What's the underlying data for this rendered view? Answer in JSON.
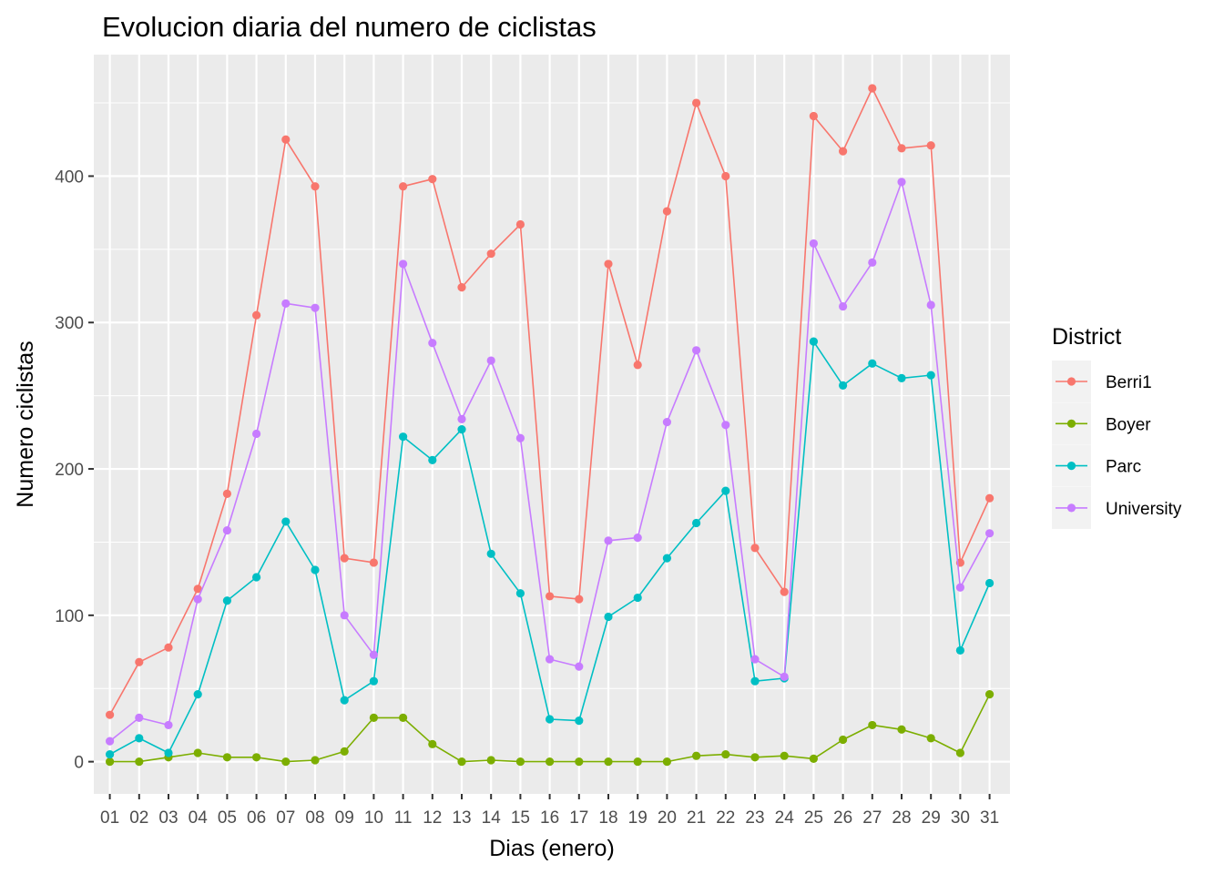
{
  "chart_data": {
    "type": "line",
    "title": "Evolucion diaria del numero de ciclistas",
    "xlabel": "Dias (enero)",
    "ylabel": "Numero ciclistas",
    "categories": [
      "01",
      "02",
      "03",
      "04",
      "05",
      "06",
      "07",
      "08",
      "09",
      "10",
      "11",
      "12",
      "13",
      "14",
      "15",
      "16",
      "17",
      "18",
      "19",
      "20",
      "21",
      "22",
      "23",
      "24",
      "25",
      "26",
      "27",
      "28",
      "29",
      "30",
      "31"
    ],
    "ylim": [
      -22,
      483
    ],
    "yticks": [
      0,
      100,
      200,
      300,
      400
    ],
    "ytick_labels": [
      "0",
      "100",
      "200",
      "300",
      "400"
    ],
    "grid": true,
    "legend": {
      "title": "District",
      "position": "right"
    },
    "series": [
      {
        "name": "Berri1",
        "color": "#F8766D",
        "values": [
          32,
          68,
          78,
          118,
          183,
          305,
          425,
          393,
          139,
          136,
          393,
          398,
          324,
          347,
          367,
          113,
          111,
          340,
          271,
          376,
          450,
          400,
          146,
          116,
          441,
          417,
          460,
          419,
          421,
          136,
          180
        ]
      },
      {
        "name": "Boyer",
        "color": "#7CAE00",
        "values": [
          0,
          0,
          3,
          6,
          3,
          3,
          0,
          1,
          7,
          30,
          30,
          12,
          0,
          1,
          0,
          0,
          0,
          0,
          0,
          0,
          4,
          5,
          3,
          4,
          2,
          15,
          25,
          22,
          16,
          6,
          46
        ]
      },
      {
        "name": "Parc",
        "color": "#00BFC4",
        "values": [
          5,
          16,
          6,
          46,
          110,
          126,
          164,
          131,
          42,
          55,
          222,
          206,
          227,
          142,
          115,
          29,
          28,
          99,
          112,
          139,
          163,
          185,
          55,
          57,
          287,
          257,
          272,
          262,
          264,
          76,
          122
        ]
      },
      {
        "name": "University",
        "color": "#C77CFF",
        "values": [
          14,
          30,
          25,
          111,
          158,
          224,
          313,
          310,
          100,
          73,
          340,
          286,
          234,
          274,
          221,
          70,
          65,
          151,
          153,
          232,
          281,
          230,
          70,
          58,
          354,
          311,
          341,
          396,
          312,
          119,
          156
        ]
      }
    ]
  },
  "style": {
    "panel_bg": "#EBEBEB",
    "grid_major": "#FFFFFF",
    "legend_key_bg": "#F2F2F2"
  }
}
